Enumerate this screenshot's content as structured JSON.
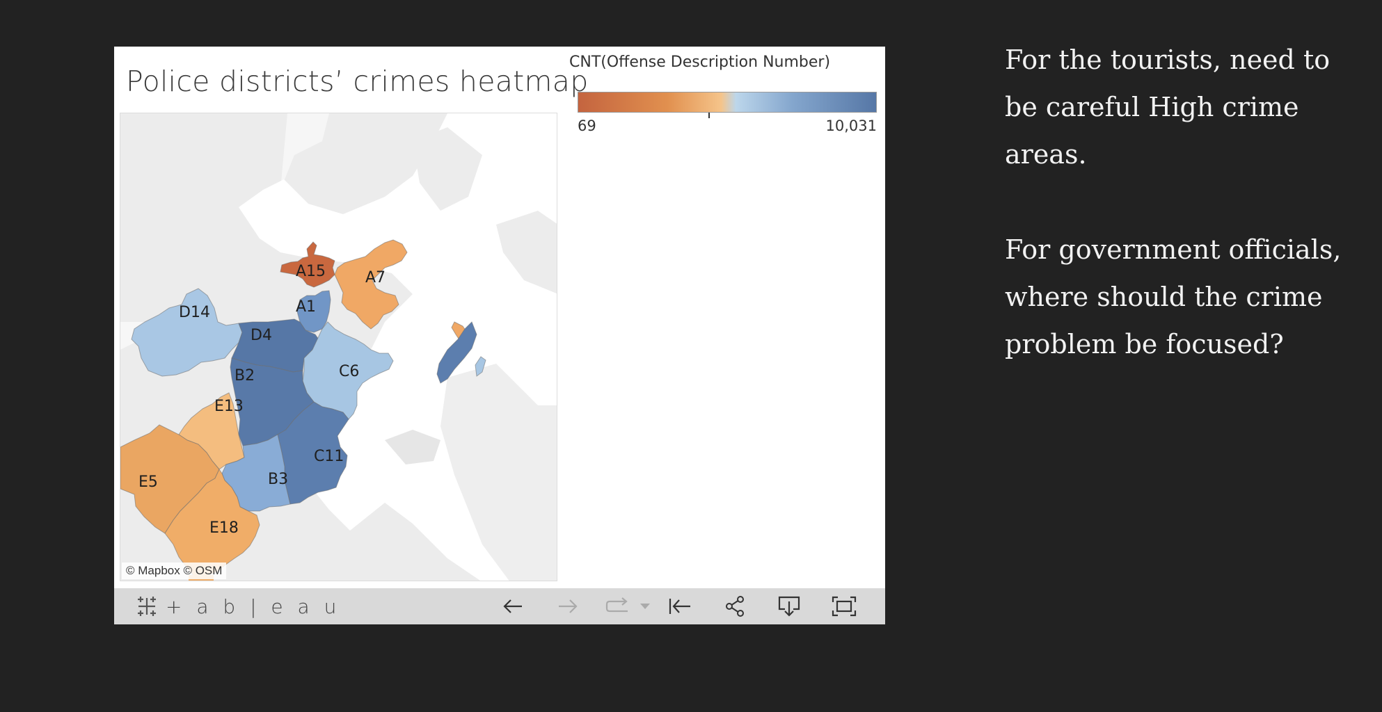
{
  "viz": {
    "title": "Police districts’ crimes heatmap",
    "attribution": "© Mapbox  © OSM",
    "legend": {
      "title": "CNT(Offense Description Number)",
      "min_label": "69",
      "max_label": "10,031",
      "min_value": 69,
      "max_value": 10031,
      "colors": [
        "#c4643f",
        "#e1904f",
        "#f5c48a",
        "#bcd6eb",
        "#84a6cd",
        "#5677a6"
      ]
    },
    "districts": [
      {
        "id": "A15",
        "label": "A15",
        "color": "#c9683f"
      },
      {
        "id": "A7",
        "label": "A7",
        "color": "#f0a865"
      },
      {
        "id": "A1",
        "label": "A1",
        "color": "#7196c6"
      },
      {
        "id": "D14",
        "label": "D14",
        "color": "#a9c7e4"
      },
      {
        "id": "D4",
        "label": "D4",
        "color": "#5677a6"
      },
      {
        "id": "C6",
        "label": "C6",
        "color": "#a7c6e3"
      },
      {
        "id": "B2",
        "label": "B2",
        "color": "#5879a8"
      },
      {
        "id": "E13",
        "label": "E13",
        "color": "#f4bd7f"
      },
      {
        "id": "C11",
        "label": "C11",
        "color": "#5c7eae"
      },
      {
        "id": "B3",
        "label": "B3",
        "color": "#89acd6"
      },
      {
        "id": "E5",
        "label": "E5",
        "color": "#eaa662"
      },
      {
        "id": "E18",
        "label": "E18",
        "color": "#f0ad68"
      }
    ]
  },
  "toolbar": {
    "brand": "+ a b | e a u",
    "buttons": [
      {
        "name": "undo-icon"
      },
      {
        "name": "redo-icon"
      },
      {
        "name": "revert-icon"
      },
      {
        "name": "revert-dropdown-icon"
      },
      {
        "name": "reset-icon"
      },
      {
        "name": "share-icon"
      },
      {
        "name": "download-icon"
      },
      {
        "name": "fullscreen-icon"
      }
    ]
  },
  "notes": {
    "paragraph1": "For the tourists,  need to be careful High crime areas.",
    "paragraph2": "For government officials, where should the crime problem be focused?"
  }
}
